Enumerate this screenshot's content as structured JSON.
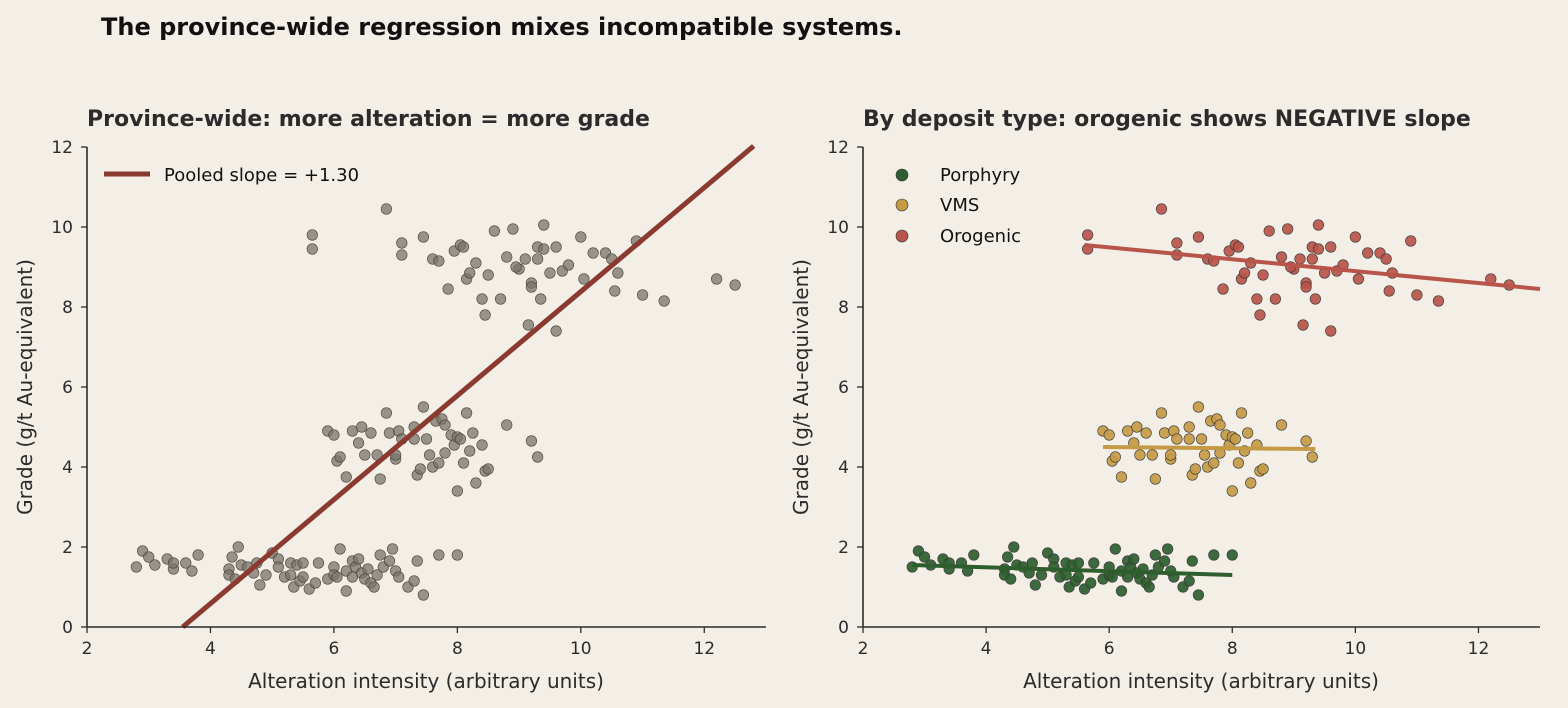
{
  "suptitle": "The province-wide regression mixes incompatible systems.",
  "colors": {
    "background": "#f3eee6",
    "pooled_points": "#7a7468",
    "pooled_line": "#8b3a2f",
    "porphyry": "#2e5e2e",
    "vms": "#c49a45",
    "orogenic": "#b85449"
  },
  "chart_data": [
    {
      "type": "scatter",
      "title": "Province-wide: more alteration = more grade",
      "xlabel": "Alteration intensity (arbitrary units)",
      "ylabel": "Grade  (g/t Au-equivalent)",
      "xlim": [
        2,
        13
      ],
      "ylim": [
        0,
        12
      ],
      "xticks": [
        2,
        4,
        6,
        8,
        10,
        12
      ],
      "yticks": [
        0,
        2,
        4,
        6,
        8,
        10,
        12
      ],
      "grid": false,
      "legend_position": "top-left",
      "series": [
        {
          "group": "Porphyry",
          "points": [
            [
              2.8,
              1.5
            ],
            [
              2.9,
              1.9
            ],
            [
              3.0,
              1.75
            ],
            [
              3.1,
              1.55
            ],
            [
              3.3,
              1.7
            ],
            [
              3.4,
              1.45
            ],
            [
              3.4,
              1.6
            ],
            [
              3.6,
              1.6
            ],
            [
              3.7,
              1.4
            ],
            [
              3.8,
              1.8
            ],
            [
              4.3,
              1.45
            ],
            [
              4.3,
              1.3
            ],
            [
              4.35,
              1.75
            ],
            [
              4.4,
              1.2
            ],
            [
              4.45,
              2.0
            ],
            [
              4.5,
              1.55
            ],
            [
              4.6,
              1.5
            ],
            [
              4.7,
              1.35
            ],
            [
              4.75,
              1.6
            ],
            [
              4.8,
              1.05
            ],
            [
              4.9,
              1.3
            ],
            [
              5.0,
              1.85
            ],
            [
              5.1,
              1.7
            ],
            [
              5.1,
              1.5
            ],
            [
              5.2,
              1.25
            ],
            [
              5.3,
              1.6
            ],
            [
              5.3,
              1.3
            ],
            [
              5.35,
              1.0
            ],
            [
              5.4,
              1.55
            ],
            [
              5.45,
              1.15
            ],
            [
              5.5,
              1.25
            ],
            [
              5.5,
              1.6
            ],
            [
              5.6,
              0.95
            ],
            [
              5.7,
              1.1
            ],
            [
              5.75,
              1.6
            ],
            [
              5.9,
              1.2
            ],
            [
              6.0,
              1.5
            ],
            [
              6.0,
              1.3
            ],
            [
              6.05,
              1.25
            ],
            [
              6.1,
              1.95
            ],
            [
              6.2,
              1.4
            ],
            [
              6.2,
              0.9
            ],
            [
              6.3,
              1.65
            ],
            [
              6.3,
              1.25
            ],
            [
              6.35,
              1.5
            ],
            [
              6.4,
              1.7
            ],
            [
              6.45,
              1.35
            ],
            [
              6.5,
              1.2
            ],
            [
              6.55,
              1.45
            ],
            [
              6.6,
              1.1
            ],
            [
              6.65,
              1.0
            ],
            [
              6.7,
              1.3
            ],
            [
              6.75,
              1.8
            ],
            [
              6.8,
              1.5
            ],
            [
              6.9,
              1.65
            ],
            [
              6.95,
              1.95
            ],
            [
              7.0,
              1.4
            ],
            [
              7.05,
              1.25
            ],
            [
              7.2,
              1.0
            ],
            [
              7.3,
              1.15
            ],
            [
              7.35,
              1.65
            ],
            [
              7.45,
              0.8
            ],
            [
              7.7,
              1.8
            ],
            [
              8.0,
              1.8
            ]
          ]
        },
        {
          "group": "VMS",
          "points": [
            [
              5.9,
              4.9
            ],
            [
              6.0,
              4.8
            ],
            [
              6.05,
              4.15
            ],
            [
              6.1,
              4.25
            ],
            [
              6.2,
              3.75
            ],
            [
              6.3,
              4.9
            ],
            [
              6.4,
              4.6
            ],
            [
              6.45,
              5.0
            ],
            [
              6.5,
              4.3
            ],
            [
              6.6,
              4.85
            ],
            [
              6.7,
              4.3
            ],
            [
              6.75,
              3.7
            ],
            [
              6.85,
              5.35
            ],
            [
              6.9,
              4.85
            ],
            [
              7.0,
              4.2
            ],
            [
              7.0,
              4.3
            ],
            [
              7.05,
              4.9
            ],
            [
              7.1,
              4.7
            ],
            [
              7.3,
              5.0
            ],
            [
              7.3,
              4.7
            ],
            [
              7.35,
              3.8
            ],
            [
              7.4,
              3.95
            ],
            [
              7.45,
              5.5
            ],
            [
              7.5,
              4.7
            ],
            [
              7.55,
              4.3
            ],
            [
              7.6,
              4.0
            ],
            [
              7.65,
              5.15
            ],
            [
              7.7,
              4.1
            ],
            [
              7.75,
              5.2
            ],
            [
              7.8,
              5.05
            ],
            [
              7.8,
              4.35
            ],
            [
              7.9,
              4.8
            ],
            [
              7.95,
              4.55
            ],
            [
              8.0,
              4.75
            ],
            [
              8.0,
              3.4
            ],
            [
              8.05,
              4.7
            ],
            [
              8.1,
              4.1
            ],
            [
              8.15,
              5.35
            ],
            [
              8.2,
              4.4
            ],
            [
              8.25,
              4.85
            ],
            [
              8.3,
              3.6
            ],
            [
              8.4,
              4.55
            ],
            [
              8.45,
              3.9
            ],
            [
              8.5,
              3.95
            ],
            [
              8.8,
              5.05
            ],
            [
              9.2,
              4.65
            ],
            [
              9.3,
              4.25
            ]
          ]
        },
        {
          "group": "Orogenic",
          "points": [
            [
              5.65,
              9.8
            ],
            [
              5.65,
              9.45
            ],
            [
              6.85,
              10.45
            ],
            [
              7.1,
              9.6
            ],
            [
              7.1,
              9.3
            ],
            [
              7.45,
              9.75
            ],
            [
              7.6,
              9.2
            ],
            [
              7.7,
              9.15
            ],
            [
              7.85,
              8.45
            ],
            [
              7.95,
              9.4
            ],
            [
              8.05,
              9.55
            ],
            [
              8.1,
              9.5
            ],
            [
              8.15,
              8.7
            ],
            [
              8.2,
              8.85
            ],
            [
              8.3,
              9.1
            ],
            [
              8.4,
              8.2
            ],
            [
              8.45,
              7.8
            ],
            [
              8.5,
              8.8
            ],
            [
              8.6,
              9.9
            ],
            [
              8.7,
              8.2
            ],
            [
              8.8,
              9.25
            ],
            [
              8.9,
              9.95
            ],
            [
              9.0,
              8.95
            ],
            [
              9.1,
              9.2
            ],
            [
              9.15,
              7.55
            ],
            [
              9.2,
              8.6
            ],
            [
              9.3,
              9.5
            ],
            [
              9.3,
              9.2
            ],
            [
              9.35,
              8.2
            ],
            [
              9.4,
              10.05
            ],
            [
              9.4,
              9.45
            ],
            [
              9.5,
              8.85
            ],
            [
              9.6,
              9.5
            ],
            [
              9.7,
              8.9
            ],
            [
              9.8,
              9.05
            ],
            [
              10.0,
              9.75
            ],
            [
              10.05,
              8.7
            ],
            [
              10.2,
              9.35
            ],
            [
              10.4,
              9.35
            ],
            [
              10.5,
              9.2
            ],
            [
              10.55,
              8.4
            ],
            [
              10.6,
              8.85
            ],
            [
              10.9,
              9.65
            ],
            [
              11.0,
              8.3
            ],
            [
              11.35,
              8.15
            ],
            [
              12.2,
              8.7
            ],
            [
              12.5,
              8.55
            ],
            [
              9.6,
              7.4
            ],
            [
              8.95,
              9.0
            ],
            [
              9.2,
              8.5
            ]
          ]
        }
      ],
      "lines": [
        {
          "name": "Pooled slope = +1.30",
          "slope": 1.3,
          "x": [
            3.55,
            12.8
          ]
        }
      ]
    },
    {
      "type": "scatter",
      "title": "By deposit type: orogenic shows NEGATIVE slope",
      "xlabel": "Alteration intensity (arbitrary units)",
      "ylabel": "Grade  (g/t Au-equivalent)",
      "xlim": [
        2,
        13
      ],
      "ylim": [
        0,
        12
      ],
      "xticks": [
        2,
        4,
        6,
        8,
        10,
        12
      ],
      "yticks": [
        0,
        2,
        4,
        6,
        8,
        10,
        12
      ],
      "grid": false,
      "legend_position": "top-left",
      "legend": [
        "Porphyry",
        "VMS",
        "Orogenic"
      ],
      "fits": [
        {
          "group": "Porphyry",
          "x": [
            2.8,
            8.0
          ],
          "y": [
            1.55,
            1.3
          ]
        },
        {
          "group": "VMS",
          "x": [
            5.9,
            9.35
          ],
          "y": [
            4.5,
            4.45
          ]
        },
        {
          "group": "Orogenic",
          "x": [
            5.6,
            13.0
          ],
          "y": [
            9.55,
            8.45
          ]
        }
      ]
    }
  ]
}
